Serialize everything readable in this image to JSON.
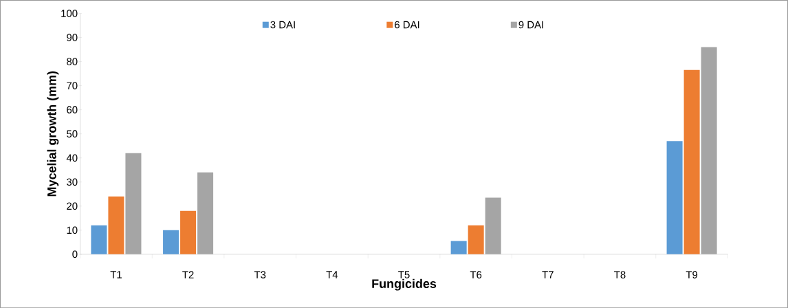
{
  "chart_data": {
    "type": "bar",
    "xlabel": "Fungicides",
    "ylabel": "Mycelial  growth (mm)",
    "categories": [
      "T1",
      "T2",
      "T3",
      "T4",
      "T5",
      "T6",
      "T7",
      "T8",
      "T9"
    ],
    "series": [
      {
        "name": "3 DAI",
        "color": "#5b9bd5",
        "values": [
          12,
          10,
          0,
          0,
          0,
          5.5,
          0,
          0,
          47
        ]
      },
      {
        "name": "6 DAI",
        "color": "#ed7d31",
        "values": [
          24,
          18,
          0,
          0,
          0,
          12,
          0,
          0,
          76.5
        ]
      },
      {
        "name": "9 DAI",
        "color": "#a5a5a5",
        "values": [
          42,
          34,
          0,
          0,
          0,
          23.5,
          0,
          0,
          86
        ]
      }
    ],
    "ylim": [
      0,
      100
    ],
    "yticks": [
      0,
      10,
      20,
      30,
      40,
      50,
      60,
      70,
      80,
      90,
      100
    ],
    "legend": "top",
    "grid": false
  }
}
